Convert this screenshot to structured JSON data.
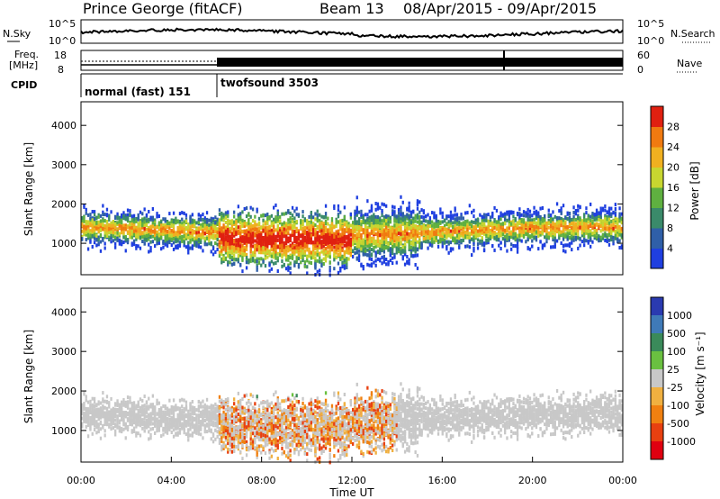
{
  "header": {
    "title": "Prince George (fitACF)",
    "beam": "Beam 13",
    "date_range": "08/Apr/2015 - 09/Apr/2015"
  },
  "noise_panel": {
    "left_label": "N.Sky",
    "left_ticks": [
      "10^5",
      "10^0"
    ],
    "right_ticks": [
      "10^5",
      "10^0"
    ],
    "right_label": "N.Search",
    "right_label_style": "dotted"
  },
  "freq_panel": {
    "left_label_1": "Freq.",
    "left_label_2": "[MHz]",
    "left_ticks": [
      "18",
      "8"
    ],
    "right_ticks": [
      "60",
      "0"
    ],
    "right_label": "Nave",
    "right_label_style": "dotted"
  },
  "cpid_panel": {
    "label": "CPID",
    "modes": [
      {
        "name": "normal (fast) 151",
        "start_hour": 0,
        "end_hour": 6
      },
      {
        "name": "twofsound 3503",
        "start_hour": 6,
        "end_hour": 24
      }
    ]
  },
  "chart_data": [
    {
      "type": "heatmap",
      "quantity": "Power",
      "xlabel": "",
      "ylabel": "Slant Range [km]",
      "xlim": [
        0,
        24
      ],
      "ylim": [
        200,
        4600
      ],
      "yticks": [
        1000,
        2000,
        3000,
        4000
      ],
      "colorbar": {
        "label": "Power [dB]",
        "ticks": [
          "4",
          "8",
          "12",
          "16",
          "20",
          "24",
          "28"
        ],
        "colors": [
          "#1f3fe0",
          "#2f5fa8",
          "#3a8a6a",
          "#5fb040",
          "#c8d630",
          "#f0b020",
          "#f07a10",
          "#e02010"
        ]
      }
    },
    {
      "type": "heatmap",
      "quantity": "Velocity",
      "xlabel": "Time UT",
      "ylabel": "Slant Range [km]",
      "xlim": [
        0,
        24
      ],
      "ylim": [
        200,
        4600
      ],
      "yticks": [
        1000,
        2000,
        3000,
        4000
      ],
      "xticks": [
        "00:00",
        "04:00",
        "08:00",
        "12:00",
        "16:00",
        "20:00",
        "00:00"
      ],
      "colorbar": {
        "label": "Velocity [m s⁻¹]",
        "ticks": [
          "1000",
          "500",
          "100",
          "25",
          "-25",
          "-100",
          "-500",
          "-1000"
        ],
        "colors": [
          "#2a3ab0",
          "#3f7ab8",
          "#3a8a5a",
          "#6ac040",
          "#c8c8c8",
          "#f0b040",
          "#f08010",
          "#e84010",
          "#e00010"
        ]
      }
    }
  ]
}
